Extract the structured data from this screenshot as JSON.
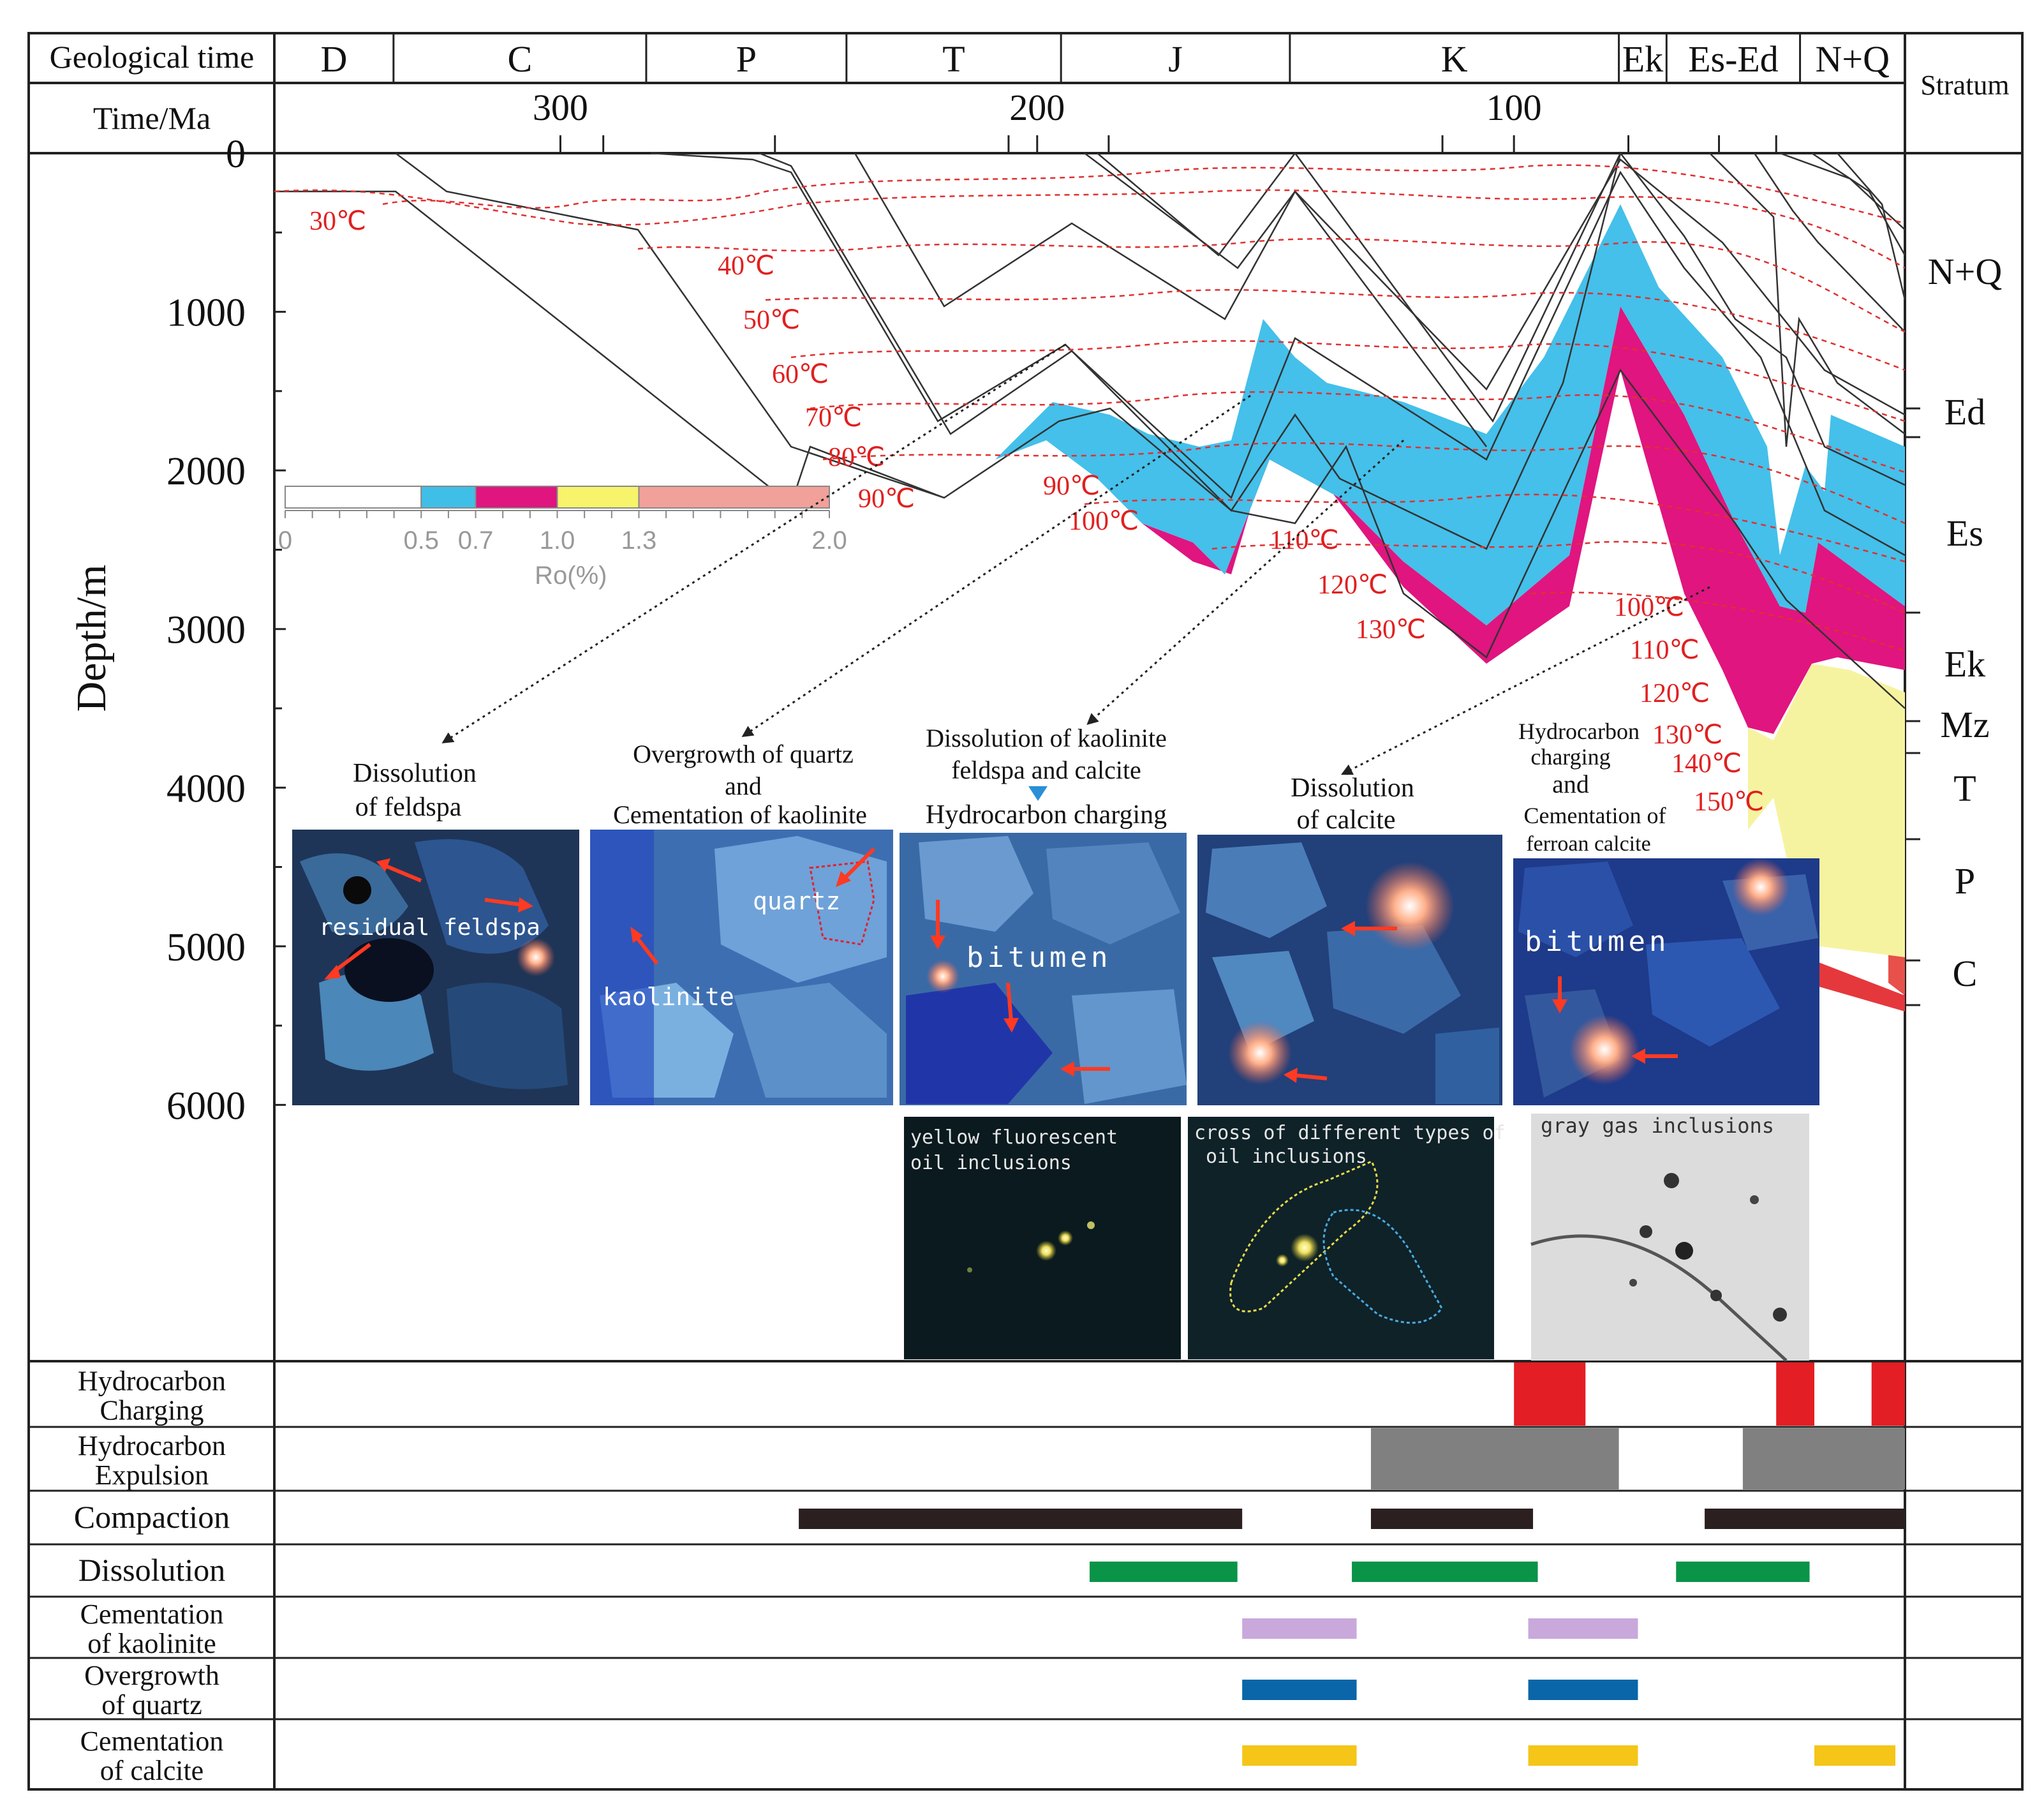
{
  "header": {
    "geological_time_label": "Geological time",
    "time_label": "Time/Ma",
    "stratum_label": "Stratum",
    "depth_axis_label": "Depth/m"
  },
  "periods": [
    {
      "label": "D",
      "from": 360,
      "to": 335
    },
    {
      "label": "C",
      "from": 335,
      "to": 282
    },
    {
      "label": "P",
      "from": 282,
      "to": 240
    },
    {
      "label": "T",
      "from": 240,
      "to": 195
    },
    {
      "label": "J",
      "from": 195,
      "to": 147
    },
    {
      "label": "K",
      "from": 147,
      "to": 78
    },
    {
      "label": "Ek",
      "from": 78,
      "to": 68
    },
    {
      "label": "Es-Ed",
      "from": 68,
      "to": 40
    },
    {
      "label": "N+Q",
      "from": 40,
      "to": 18
    }
  ],
  "time_axis": {
    "ticks": [
      "300",
      "200",
      "100"
    ],
    "tick_values": [
      300,
      200,
      100
    ],
    "minor_ticks": [
      291,
      255,
      206,
      185,
      115,
      76,
      57,
      45
    ]
  },
  "depth_axis": {
    "ticks": [
      "0",
      "1000",
      "2000",
      "3000",
      "4000",
      "5000",
      "6000"
    ]
  },
  "strata": [
    "N+Q",
    "Ed",
    "Es",
    "Ek",
    "Mz",
    "T",
    "P",
    "C"
  ],
  "ro_legend": {
    "title": "Ro(%)",
    "ticks": [
      "0",
      "0.5",
      "0.7",
      "1.0",
      "1.3",
      "2.0"
    ],
    "colors": [
      "#ffffff",
      "#3fbfe8",
      "#e0157f",
      "#f7f36a",
      "#f2a09a"
    ]
  },
  "isotherms_left": [
    "30℃",
    "40℃",
    "50℃",
    "60℃",
    "70℃",
    "80℃",
    "90℃",
    "90℃",
    "100℃",
    "110℃",
    "120℃",
    "130℃"
  ],
  "isotherms_right": [
    "100℃",
    "110℃",
    "120℃",
    "130℃",
    "140℃",
    "150℃"
  ],
  "panels": {
    "p1": {
      "title": "Dissolution of feldspa",
      "label": "residual feldspa"
    },
    "p2": {
      "title_line1": "Overgrowth of quartz",
      "title_line2": "and",
      "title_line3": "Cementation of kaolinite",
      "label1": "quartz",
      "label2": "kaolinite"
    },
    "p3": {
      "title_line1": "Dissolution of kaolinite",
      "title_line2": "feldspa and calcite",
      "title_line3": "Hydrocarbon charging",
      "label": "bitumen"
    },
    "p4": {
      "title_line1": "Dissolution",
      "title_line2": "of calcite"
    },
    "p5": {
      "title_line1": "Hydrocarbon",
      "title_line2": "charging",
      "title_line3": "and",
      "title_line4": "Cementation of",
      "title_line5": "ferroan calcite",
      "label": "bitumen"
    },
    "i1": {
      "line1": "yellow fluorescent",
      "line2": "oil inclusions"
    },
    "i2": {
      "line1": "cross of different types of",
      "line2": "oil inclusions"
    },
    "i3": {
      "line1": "gray gas inclusions"
    }
  },
  "events": [
    {
      "name": "Hydrocarbon Charging",
      "line1": "Hydrocarbon",
      "line2": "Charging",
      "color": "#e31e24",
      "kind": "block",
      "bars": [
        [
          100,
          85
        ],
        [
          45,
          37
        ],
        [
          25,
          18
        ]
      ]
    },
    {
      "name": "Hydrocarbon Expulsion",
      "line1": "Hydrocarbon",
      "line2": "Expulsion",
      "color": "#808080",
      "kind": "block",
      "bars": [
        [
          130,
          78
        ],
        [
          52,
          18
        ]
      ]
    },
    {
      "name": "Compaction",
      "line1": "Compaction",
      "line2": "",
      "color": "#2b1f1f",
      "kind": "bar",
      "bars": [
        [
          250,
          157
        ],
        [
          130,
          96
        ],
        [
          60,
          18
        ]
      ]
    },
    {
      "name": "Dissolution",
      "line1": "Dissolution",
      "line2": "",
      "color": "#0a9448",
      "kind": "bar",
      "bars": [
        [
          189,
          158
        ],
        [
          134,
          95
        ],
        [
          66,
          38
        ]
      ]
    },
    {
      "name": "Cementation of kaolinite",
      "line1": "Cementation",
      "line2": "of kaolinite",
      "color": "#c9a8dc",
      "kind": "bar",
      "bars": [
        [
          157,
          133
        ],
        [
          97,
          74
        ]
      ]
    },
    {
      "name": "Overgrowth of quartz",
      "line1": "Overgrowth",
      "line2": "of quartz",
      "color": "#0a66a8",
      "kind": "bar",
      "bars": [
        [
          157,
          133
        ],
        [
          97,
          74
        ]
      ]
    },
    {
      "name": "Cementation of calcite",
      "line1": "Cementation",
      "line2": "of calcite",
      "color": "#f5c518",
      "kind": "bar",
      "bars": [
        [
          157,
          133
        ],
        [
          97,
          74
        ],
        [
          37,
          20
        ]
      ]
    }
  ]
}
